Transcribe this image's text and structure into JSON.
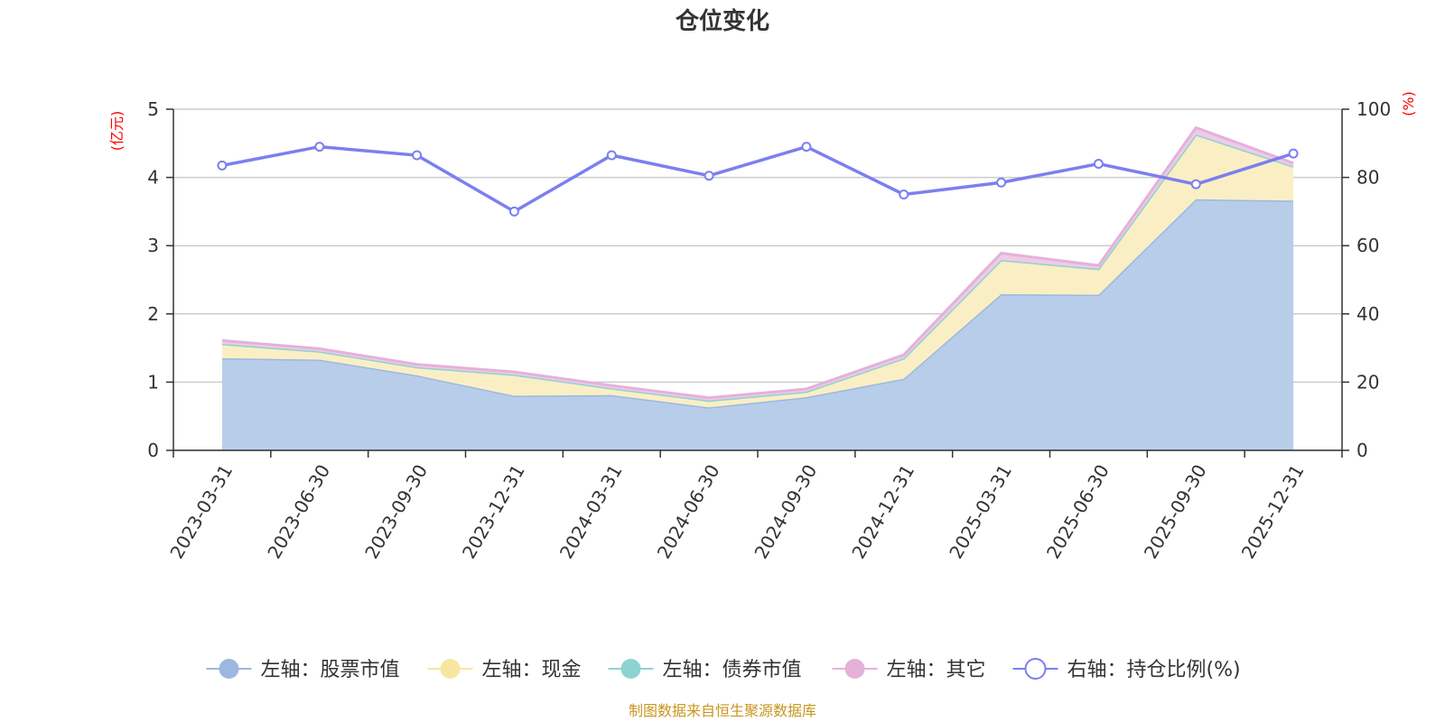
{
  "chart_data": {
    "type": "area",
    "title": "仓位变化",
    "source": "制图数据来自恒生聚源数据库",
    "y_left": {
      "unit": "(亿元)",
      "range": [
        0,
        5
      ],
      "ticks": [
        "0",
        "1",
        "2",
        "3",
        "4",
        "5"
      ]
    },
    "y_right": {
      "unit": "(%)",
      "range": [
        0,
        100
      ],
      "ticks": [
        "0",
        "20",
        "40",
        "60",
        "80",
        "100"
      ]
    },
    "categories": [
      "2023-03-31",
      "2023-06-30",
      "2023-09-30",
      "2023-12-31",
      "2024-03-31",
      "2024-06-30",
      "2024-09-30",
      "2024-12-31",
      "2025-03-31",
      "2025-06-30",
      "2025-09-30",
      "2025-12-31"
    ],
    "grid": true,
    "legend_position": "bottom",
    "stacked_series": [
      {
        "name": "左轴：股票市值",
        "axis": "left",
        "color": "#9cb8e0",
        "fill": "#b8cdea",
        "values": [
          1.35,
          1.33,
          1.1,
          0.8,
          0.81,
          0.63,
          0.78,
          1.05,
          2.29,
          2.28,
          3.68,
          3.66
        ]
      },
      {
        "name": "左轴：现金",
        "axis": "left",
        "color": "#f8e6a0",
        "fill": "#faefc4",
        "values": [
          0.21,
          0.12,
          0.12,
          0.31,
          0.1,
          0.1,
          0.08,
          0.3,
          0.5,
          0.38,
          0.95,
          0.5
        ]
      },
      {
        "name": "左轴：债券市值",
        "axis": "left",
        "color": "#8dd3d3",
        "fill": "#bfe6e6",
        "values": [
          0,
          0,
          0,
          0,
          0,
          0,
          0,
          0,
          0,
          0,
          0,
          0
        ]
      },
      {
        "name": "左轴：其它",
        "axis": "left",
        "color": "#e5b1da",
        "fill": "#efcbe7",
        "values": [
          0.05,
          0.04,
          0.04,
          0.04,
          0.04,
          0.04,
          0.04,
          0.05,
          0.1,
          0.05,
          0.1,
          0.05
        ]
      }
    ],
    "line_series": {
      "name": "右轴：持仓比例(%)",
      "axis": "right",
      "color": "#7b7ff0",
      "values": [
        83.5,
        89,
        86.5,
        70,
        86.5,
        80.5,
        89,
        75,
        78.5,
        84,
        78,
        87
      ]
    }
  }
}
